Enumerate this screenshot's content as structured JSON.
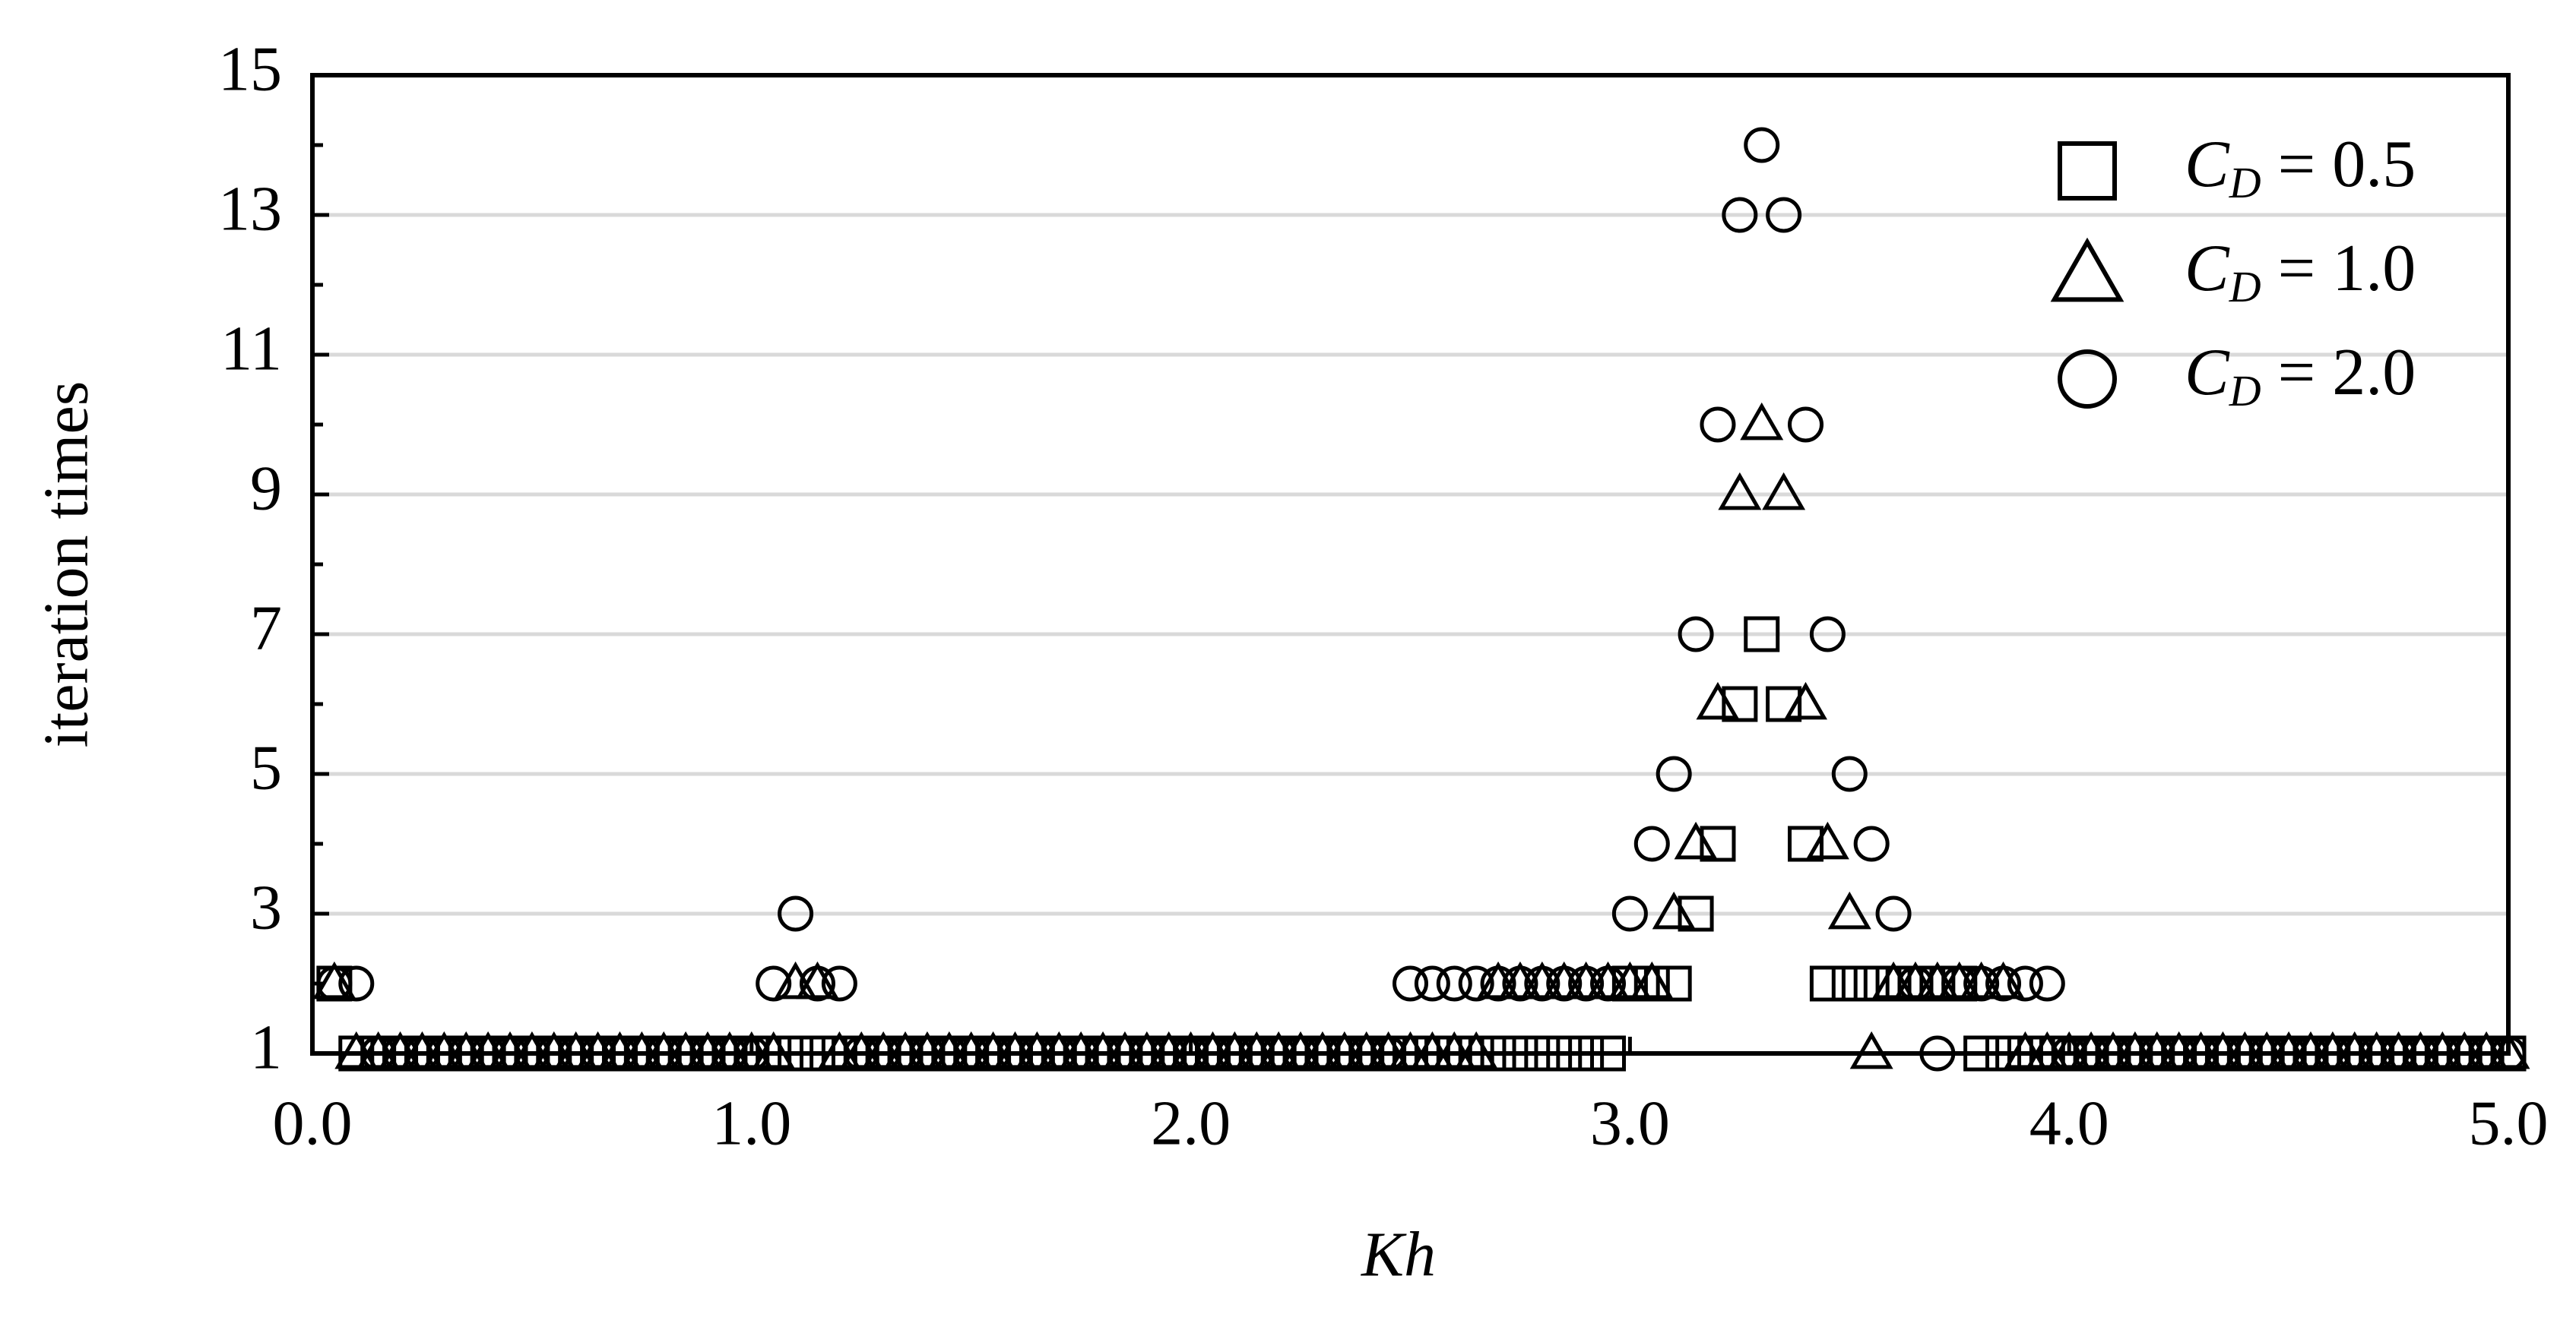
{
  "chart_data": {
    "type": "scatter",
    "x_label": "Kh",
    "y_label": "iteration times",
    "xlim": [
      0,
      5
    ],
    "ylim": [
      1,
      15
    ],
    "xticks": [
      {
        "value": 0,
        "label": "0.0"
      },
      {
        "value": 1,
        "label": "1.0"
      },
      {
        "value": 2,
        "label": "2.0"
      },
      {
        "value": 3,
        "label": "3.0"
      },
      {
        "value": 4,
        "label": "4.0"
      },
      {
        "value": 5,
        "label": "5.0"
      }
    ],
    "yticks": [
      1,
      3,
      5,
      7,
      9,
      11,
      13,
      15
    ],
    "yminorticks": [
      2,
      4,
      6,
      8,
      10,
      12,
      14
    ],
    "grid": true,
    "legend": "upper right",
    "x": [
      0.05,
      0.1,
      0.15,
      0.2,
      0.25,
      0.3,
      0.35,
      0.4,
      0.45,
      0.5,
      0.55,
      0.6,
      0.65,
      0.7,
      0.75,
      0.8,
      0.85,
      0.9,
      0.95,
      1.0,
      1.05,
      1.1,
      1.15,
      1.2,
      1.25,
      1.3,
      1.35,
      1.4,
      1.45,
      1.5,
      1.55,
      1.6,
      1.65,
      1.7,
      1.75,
      1.8,
      1.85,
      1.9,
      1.95,
      2.0,
      2.05,
      2.1,
      2.15,
      2.2,
      2.25,
      2.3,
      2.35,
      2.4,
      2.45,
      2.5,
      2.55,
      2.6,
      2.65,
      2.7,
      2.75,
      2.8,
      2.85,
      2.9,
      2.95,
      3.0,
      3.05,
      3.1,
      3.15,
      3.2,
      3.25,
      3.3,
      3.35,
      3.4,
      3.45,
      3.5,
      3.55,
      3.6,
      3.65,
      3.7,
      3.75,
      3.8,
      3.85,
      3.9,
      3.95,
      4.0,
      4.05,
      4.1,
      4.15,
      4.2,
      4.25,
      4.3,
      4.35,
      4.4,
      4.45,
      4.5,
      4.55,
      4.6,
      4.65,
      4.7,
      4.75,
      4.8,
      4.85,
      4.9,
      4.95,
      5.0
    ],
    "series": [
      {
        "name": "CD = 0.5",
        "marker": "square",
        "color": "#000000",
        "values": [
          2,
          1,
          1,
          1,
          1,
          1,
          1,
          1,
          1,
          1,
          1,
          1,
          1,
          1,
          1,
          1,
          1,
          1,
          1,
          1,
          1,
          1,
          1,
          1,
          1,
          1,
          1,
          1,
          1,
          1,
          1,
          1,
          1,
          1,
          1,
          1,
          1,
          1,
          1,
          1,
          1,
          1,
          1,
          1,
          1,
          1,
          1,
          1,
          1,
          1,
          1,
          1,
          1,
          1,
          1,
          1,
          1,
          1,
          1,
          2,
          2,
          2,
          3,
          4,
          6,
          7,
          6,
          4,
          2,
          2,
          2,
          2,
          2,
          2,
          2,
          1,
          1,
          1,
          1,
          1,
          1,
          1,
          1,
          1,
          1,
          1,
          1,
          1,
          1,
          1,
          1,
          1,
          1,
          1,
          1,
          1,
          1,
          1,
          1,
          1
        ]
      },
      {
        "name": "CD = 1.0",
        "marker": "triangle",
        "color": "#000000",
        "values": [
          2,
          1,
          1,
          1,
          1,
          1,
          1,
          1,
          1,
          1,
          1,
          1,
          1,
          1,
          1,
          1,
          1,
          1,
          1,
          1,
          1,
          2,
          2,
          1,
          1,
          1,
          1,
          1,
          1,
          1,
          1,
          1,
          1,
          1,
          1,
          1,
          1,
          1,
          1,
          1,
          1,
          1,
          1,
          1,
          1,
          1,
          1,
          1,
          1,
          1,
          1,
          1,
          1,
          2,
          2,
          2,
          2,
          2,
          2,
          2,
          2,
          3,
          4,
          6,
          9,
          10,
          9,
          6,
          4,
          3,
          1,
          2,
          2,
          2,
          2,
          2,
          2,
          1,
          1,
          1,
          1,
          1,
          1,
          1,
          1,
          1,
          1,
          1,
          1,
          1,
          1,
          1,
          1,
          1,
          1,
          1,
          1,
          1,
          1,
          1
        ]
      },
      {
        "name": "CD = 2.0",
        "marker": "circle",
        "color": "#000000",
        "values": [
          2,
          2,
          1,
          1,
          1,
          1,
          1,
          1,
          1,
          1,
          1,
          1,
          1,
          1,
          1,
          1,
          1,
          1,
          1,
          1,
          2,
          3,
          2,
          2,
          1,
          1,
          1,
          1,
          1,
          1,
          1,
          1,
          1,
          1,
          1,
          1,
          1,
          1,
          1,
          1,
          1,
          1,
          1,
          1,
          1,
          1,
          1,
          1,
          1,
          2,
          2,
          2,
          2,
          2,
          2,
          2,
          2,
          2,
          2,
          3,
          4,
          5,
          7,
          10,
          13,
          14,
          13,
          10,
          7,
          5,
          4,
          3,
          2,
          1,
          2,
          2,
          2,
          2,
          2,
          1,
          1,
          1,
          1,
          1,
          1,
          1,
          1,
          1,
          1,
          1,
          1,
          1,
          1,
          1,
          1,
          1,
          1,
          1,
          1,
          1
        ]
      }
    ]
  }
}
